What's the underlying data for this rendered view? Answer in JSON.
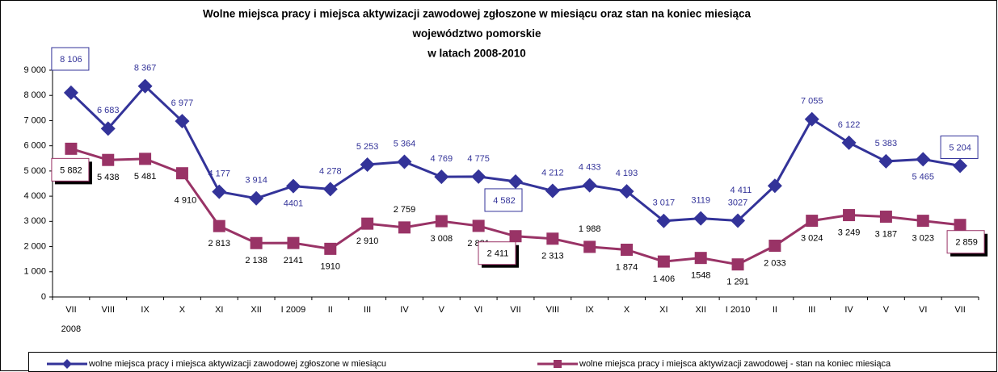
{
  "chart_data": {
    "type": "line",
    "title": [
      "Wolne miejsca pracy i miejsca aktywizacji zawodowej zgłoszone w miesiącu oraz stan na koniec miesiąca",
      "województwo pomorskie",
      "w latach 2008-2010"
    ],
    "categories": [
      [
        "VII",
        "2008"
      ],
      "VIII",
      "IX",
      "X",
      "XI",
      "XII",
      "I 2009",
      "II",
      "III",
      "IV",
      "V",
      "VI",
      "VII",
      "VIII",
      "IX",
      "X",
      "XI",
      "XII",
      "I 2010",
      "II",
      "III",
      "IV",
      "V",
      "VI",
      "VII"
    ],
    "series": [
      {
        "name": "wolne miejsca pracy i miejsca aktywizacji zawodowej zgłoszone w miesiącu",
        "color": "#333399",
        "marker": "diamond",
        "values": [
          8106,
          6683,
          8367,
          6977,
          4177,
          3914,
          4401,
          4278,
          5253,
          5364,
          4769,
          4775,
          4582,
          4212,
          4433,
          4193,
          3017,
          3119,
          3027,
          4411,
          7055,
          6122,
          5383,
          5465,
          5204
        ],
        "value_labels": [
          "8 106",
          "6 683",
          "8 367",
          "6 977",
          "4 177",
          "3 914",
          "4401",
          "4 278",
          "5 253",
          "5 364",
          "4 769",
          "4 775",
          "4 582",
          "4 212",
          "4 433",
          "4 193",
          "3 017",
          "3119",
          "3027",
          "4 411",
          "7 055",
          "6 122",
          "5 383",
          "5 465",
          "5 204"
        ]
      },
      {
        "name": "wolne miejsca pracy i miejsca aktywizacji zawodowej - stan na koniec miesiąca",
        "color": "#993366",
        "marker": "square",
        "values": [
          5882,
          5438,
          5481,
          4910,
          2813,
          2138,
          2141,
          1910,
          2910,
          2759,
          3008,
          2821,
          2411,
          2313,
          1988,
          1874,
          1406,
          1548,
          1291,
          2033,
          3024,
          3249,
          3187,
          3023,
          2859
        ],
        "value_labels": [
          "5 882",
          "5 438",
          "5 481",
          "4 910",
          "2 813",
          "2 138",
          "2141",
          "1910",
          "2 910",
          "2 759",
          "3 008",
          "2 821",
          "2 411",
          "2 313",
          "1 988",
          "1 874",
          "1 406",
          "1548",
          "1 291",
          "2 033",
          "3 024",
          "3 249",
          "3 187",
          "3 023",
          "2 859"
        ]
      }
    ],
    "ylim": [
      0,
      9000
    ],
    "yticks": [
      0,
      {
        "value": 1000,
        "label": "1 000"
      },
      {
        "value": 2000,
        "label": "2 000"
      },
      {
        "value": 3000,
        "label": "3 000"
      },
      {
        "value": 4000,
        "label": "4 000"
      },
      {
        "value": 5000,
        "label": "5 000"
      },
      {
        "value": 6000,
        "label": "6 000"
      },
      {
        "value": 7000,
        "label": "7 000"
      },
      {
        "value": 8000,
        "label": "8 000"
      },
      {
        "value": 9000,
        "label": "9 000"
      }
    ],
    "grid": false,
    "legend": "bottom"
  }
}
